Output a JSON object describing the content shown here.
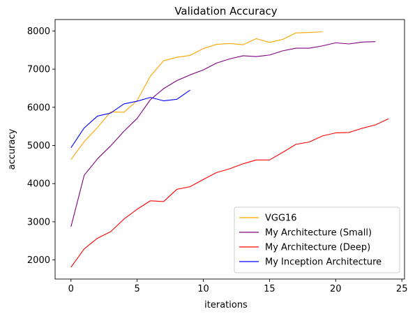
{
  "chart_data": {
    "type": "line",
    "title": "Validation Accuracy",
    "xlabel": "iterations",
    "ylabel": "accuracy",
    "xlim": [
      -1.2,
      25.2
    ],
    "ylim": [
      1500,
      8300
    ],
    "xticks": [
      0,
      5,
      10,
      15,
      20,
      25
    ],
    "yticks": [
      2000,
      3000,
      4000,
      5000,
      6000,
      7000,
      8000
    ],
    "grid": false,
    "legend_position": "lower-right",
    "series": [
      {
        "name": "VGG16",
        "color": "#ffa500",
        "x": [
          0,
          1,
          2,
          3,
          4,
          5,
          6,
          7,
          8,
          9,
          10,
          11,
          12,
          13,
          14,
          15,
          16,
          17,
          18,
          19
        ],
        "y": [
          4630,
          5100,
          5470,
          5880,
          5870,
          6180,
          6820,
          7220,
          7310,
          7360,
          7540,
          7650,
          7670,
          7640,
          7800,
          7700,
          7780,
          7950,
          7960,
          7980
        ]
      },
      {
        "name": "My Architecture (Small)",
        "color": "#800080",
        "x": [
          0,
          1,
          2,
          3,
          4,
          5,
          6,
          7,
          8,
          9,
          10,
          11,
          12,
          13,
          14,
          15,
          16,
          17,
          18,
          19,
          20,
          21,
          22,
          23
        ],
        "y": [
          2870,
          4220,
          4650,
          4990,
          5370,
          5710,
          6200,
          6490,
          6700,
          6850,
          6980,
          7160,
          7270,
          7350,
          7330,
          7370,
          7480,
          7550,
          7550,
          7610,
          7690,
          7660,
          7710,
          7720
        ]
      },
      {
        "name": "My Architecture (Deep)",
        "color": "#ff0000",
        "x": [
          0,
          1,
          2,
          3,
          4,
          5,
          6,
          7,
          8,
          9,
          10,
          11,
          12,
          13,
          14,
          15,
          16,
          17,
          18,
          19,
          20,
          21,
          22,
          23,
          24
        ],
        "y": [
          1810,
          2290,
          2570,
          2740,
          3070,
          3330,
          3550,
          3530,
          3850,
          3920,
          4110,
          4290,
          4390,
          4520,
          4620,
          4620,
          4820,
          5030,
          5090,
          5250,
          5330,
          5340,
          5450,
          5540,
          5700
        ]
      },
      {
        "name": "My Inception Architecture",
        "color": "#0000ff",
        "x": [
          0,
          1,
          2,
          3,
          4,
          5,
          6,
          7,
          8,
          9
        ],
        "y": [
          4940,
          5460,
          5770,
          5850,
          6090,
          6160,
          6260,
          6170,
          6210,
          6450
        ]
      }
    ]
  }
}
